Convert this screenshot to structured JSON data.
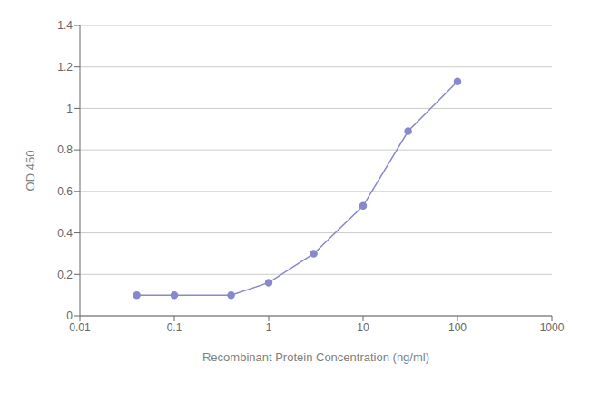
{
  "chart_data": {
    "type": "line",
    "xlabel": "Recombinant Protein Concentration (ng/ml)",
    "ylabel": "OD 450",
    "x": [
      0.04,
      0.1,
      0.4,
      1.0,
      3.0,
      10.0,
      30.0,
      100.0
    ],
    "values": [
      0.1,
      0.1,
      0.1,
      0.16,
      0.3,
      0.53,
      0.89,
      1.13
    ],
    "color": "#8888cc",
    "marker": "circle",
    "log": "x",
    "xlim": [
      0.01,
      1000
    ],
    "xticks": [
      0.01,
      0.1,
      1,
      10,
      100,
      1000
    ],
    "ylim": [
      0,
      1.4
    ],
    "yticks": [
      0,
      0.2,
      0.4,
      0.6,
      0.8,
      1,
      1.2,
      1.4
    ],
    "grid": true
  }
}
